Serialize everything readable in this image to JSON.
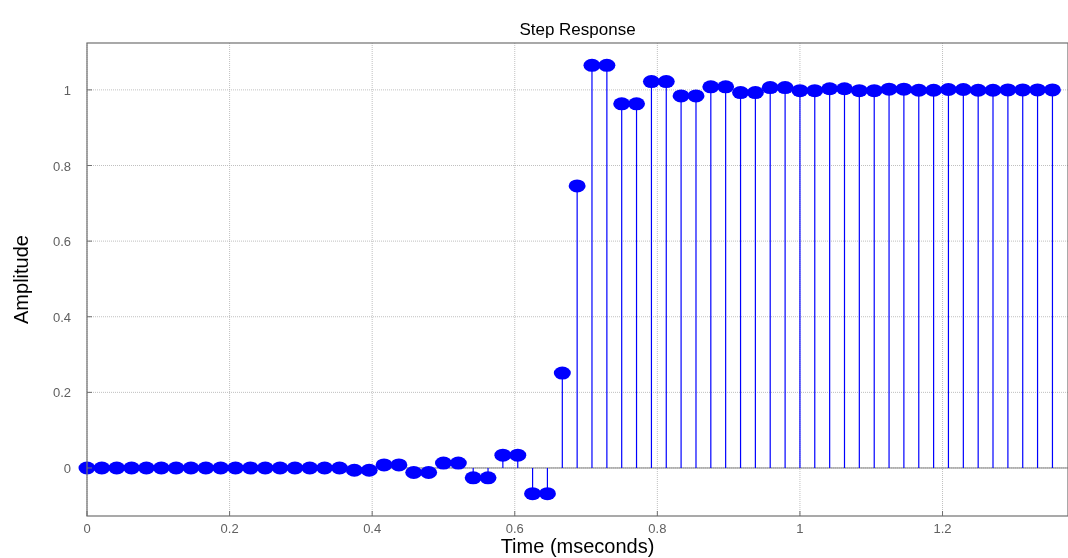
{
  "chart_data": {
    "type": "lollipop",
    "title": "Step Response",
    "xlabel": "Time (mseconds)",
    "ylabel": "Amplitude",
    "x": [
      0,
      0.0208,
      0.0417,
      0.0625,
      0.0833,
      0.1042,
      0.125,
      0.1458,
      0.1667,
      0.1875,
      0.2083,
      0.2292,
      0.25,
      0.2708,
      0.2917,
      0.3125,
      0.3333,
      0.3542,
      0.375,
      0.3958,
      0.4167,
      0.4375,
      0.4583,
      0.4792,
      0.5,
      0.5208,
      0.5417,
      0.5625,
      0.5833,
      0.6042,
      0.625,
      0.6458,
      0.6667,
      0.6875,
      0.7083,
      0.7292,
      0.75,
      0.7708,
      0.7917,
      0.8125,
      0.8333,
      0.8542,
      0.875,
      0.8958,
      0.9167,
      0.9375,
      0.9583,
      0.9792,
      1,
      1.0208,
      1.0417,
      1.0625,
      1.0833,
      1.1042,
      1.125,
      1.1458,
      1.1667,
      1.1875,
      1.2083,
      1.2292,
      1.25,
      1.2708,
      1.2917,
      1.3125,
      1.3333,
      1.3542
    ],
    "series": [
      {
        "color": "#0000ff",
        "values": [
          0,
          0,
          0,
          0,
          0,
          0,
          0,
          0,
          0,
          0,
          0,
          0,
          0,
          0,
          0,
          0,
          0,
          0,
          -0.006,
          -0.006,
          0.008,
          0.008,
          -0.012,
          -0.012,
          0.013,
          0.013,
          -0.026,
          -0.026,
          0.034,
          0.034,
          -0.068,
          -0.068,
          0.251,
          0.746,
          1.065,
          1.065,
          0.963,
          0.963,
          1.022,
          1.022,
          0.984,
          0.984,
          1.008,
          1.008,
          0.993,
          0.993,
          1.006,
          1.006,
          0.998,
          0.998,
          1.003,
          1.003,
          0.998,
          0.998,
          1.002,
          1.002,
          0.999,
          0.999,
          1.001,
          1.001,
          0.999,
          0.999,
          1,
          1,
          1,
          1
        ]
      }
    ],
    "xlim": [
      0,
      1.376
    ],
    "ylim": [
      -0.127,
      1.124
    ],
    "xticks": [
      0,
      0.2,
      0.4,
      0.6,
      0.8,
      1,
      1.2
    ],
    "yticks": [
      0,
      0.2,
      0.4,
      0.6,
      0.8,
      1
    ],
    "grid": true,
    "marker": "circle"
  }
}
